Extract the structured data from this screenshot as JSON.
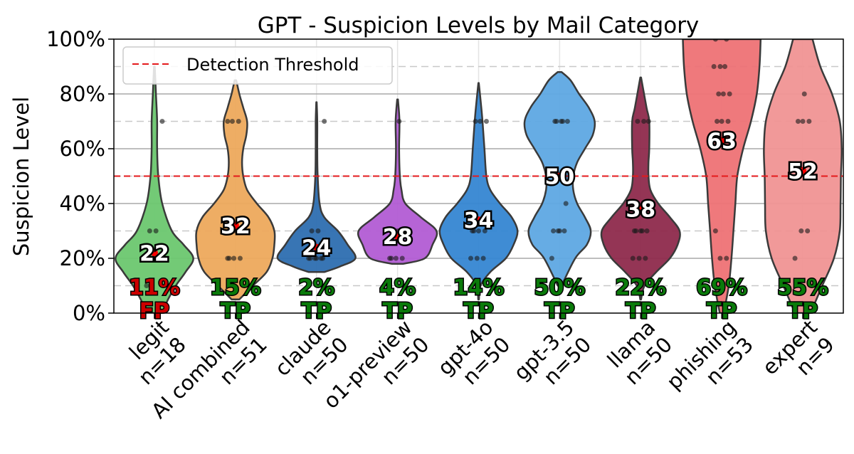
{
  "chart_data": {
    "type": "violin",
    "title": "GPT - Suspicion Levels by Mail Category",
    "ylabel": "Suspicion Level",
    "xlabel": "",
    "ylim": [
      0,
      100
    ],
    "yticks": [
      "0%",
      "20%",
      "40%",
      "60%",
      "80%",
      "100%"
    ],
    "grid": "major solid, minor dashed",
    "threshold": {
      "value": 50,
      "label": "Detection Threshold",
      "color": "#e41a1c"
    },
    "legend_position": "top-left",
    "categories": [
      {
        "name": "legit",
        "n": "n=18",
        "mean": 22,
        "mean_label": "22",
        "rate": "11%",
        "rate_type": "FP",
        "color": "#6cc76f",
        "rate_color": "#cc0000",
        "density": [
          [
            0,
            0.2
          ],
          [
            5,
            0.35
          ],
          [
            10,
            0.55
          ],
          [
            15,
            0.8
          ],
          [
            20,
            1.0
          ],
          [
            25,
            0.75
          ],
          [
            30,
            0.45
          ],
          [
            40,
            0.2
          ],
          [
            50,
            0.1
          ],
          [
            60,
            0.07
          ],
          [
            70,
            0.07
          ],
          [
            80,
            0.04
          ],
          [
            90,
            0.01
          ]
        ],
        "points": [
          10,
          20,
          20,
          20,
          20,
          20,
          30,
          30,
          70
        ]
      },
      {
        "name": "AI combined",
        "n": "n=51",
        "mean": 32,
        "mean_label": "32",
        "rate": "15%",
        "rate_type": "TP",
        "color": "#eda95c",
        "rate_color": "#0a7a0a",
        "density": [
          [
            5,
            0.1
          ],
          [
            10,
            0.45
          ],
          [
            15,
            0.8
          ],
          [
            20,
            0.95
          ],
          [
            25,
            1.0
          ],
          [
            30,
            1.0
          ],
          [
            35,
            0.85
          ],
          [
            40,
            0.55
          ],
          [
            45,
            0.3
          ],
          [
            50,
            0.2
          ],
          [
            55,
            0.17
          ],
          [
            60,
            0.2
          ],
          [
            65,
            0.28
          ],
          [
            70,
            0.3
          ],
          [
            75,
            0.2
          ],
          [
            80,
            0.1
          ],
          [
            85,
            0.02
          ]
        ],
        "points": [
          20,
          20,
          20,
          20,
          30,
          30,
          30,
          30,
          30,
          70,
          70,
          70
        ]
      },
      {
        "name": "claude",
        "n": "n=50",
        "mean": 24,
        "mean_label": "24",
        "rate": "2%",
        "rate_type": "TP",
        "color": "#2d6eb0",
        "rate_color": "#0a7a0a",
        "density": [
          [
            15,
            0.2
          ],
          [
            17,
            0.6
          ],
          [
            20,
            1.0
          ],
          [
            25,
            0.8
          ],
          [
            30,
            0.55
          ],
          [
            35,
            0.2
          ],
          [
            40,
            0.08
          ],
          [
            50,
            0.03
          ],
          [
            60,
            0.02
          ],
          [
            70,
            0.02
          ],
          [
            77,
            0.005
          ]
        ],
        "points": [
          20,
          20,
          20,
          20,
          20,
          20,
          30,
          30,
          70
        ]
      },
      {
        "name": "o1-preview",
        "n": "n=50",
        "mean": 28,
        "mean_label": "28",
        "rate": "4%",
        "rate_type": "TP",
        "color": "#b25cd4",
        "rate_color": "#0a7a0a",
        "density": [
          [
            18,
            0.15
          ],
          [
            20,
            0.7
          ],
          [
            25,
            0.9
          ],
          [
            30,
            1.0
          ],
          [
            35,
            0.6
          ],
          [
            40,
            0.2
          ],
          [
            45,
            0.1
          ],
          [
            50,
            0.06
          ],
          [
            60,
            0.04
          ],
          [
            70,
            0.05
          ],
          [
            78,
            0.01
          ]
        ],
        "points": [
          20,
          20,
          20,
          20,
          30,
          30,
          30,
          70
        ]
      },
      {
        "name": "gpt-4o",
        "n": "n=50",
        "mean": 34,
        "mean_label": "34",
        "rate": "14%",
        "rate_type": "TP",
        "color": "#3586d2",
        "rate_color": "#0a7a0a",
        "density": [
          [
            5,
            0.01
          ],
          [
            10,
            0.05
          ],
          [
            15,
            0.3
          ],
          [
            20,
            0.7
          ],
          [
            25,
            0.9
          ],
          [
            30,
            1.0
          ],
          [
            35,
            0.85
          ],
          [
            40,
            0.55
          ],
          [
            45,
            0.3
          ],
          [
            50,
            0.2
          ],
          [
            60,
            0.15
          ],
          [
            70,
            0.1
          ],
          [
            75,
            0.07
          ],
          [
            84,
            0.005
          ]
        ],
        "points": [
          20,
          20,
          20,
          30,
          30,
          30,
          30,
          70,
          70,
          70
        ]
      },
      {
        "name": "gpt-3.5",
        "n": "n=50",
        "mean": 50,
        "mean_label": "50",
        "rate": "50%",
        "rate_type": "TP",
        "color": "#5ea8e3",
        "rate_color": "#0a7a0a",
        "density": [
          [
            10,
            0.05
          ],
          [
            20,
            0.4
          ],
          [
            25,
            0.7
          ],
          [
            30,
            0.8
          ],
          [
            35,
            0.65
          ],
          [
            40,
            0.45
          ],
          [
            45,
            0.35
          ],
          [
            50,
            0.35
          ],
          [
            55,
            0.45
          ],
          [
            60,
            0.65
          ],
          [
            65,
            0.85
          ],
          [
            70,
            0.9
          ],
          [
            75,
            0.75
          ],
          [
            80,
            0.5
          ],
          [
            85,
            0.28
          ],
          [
            88,
            0.05
          ]
        ],
        "points": [
          20,
          30,
          30,
          30,
          30,
          40,
          70,
          70,
          70,
          70,
          70
        ]
      },
      {
        "name": "llama",
        "n": "n=50",
        "mean": 38,
        "mean_label": "38",
        "rate": "22%",
        "rate_type": "TP",
        "color": "#8e2a4c",
        "rate_color": "#0a7a0a",
        "density": [
          [
            5,
            0.01
          ],
          [
            10,
            0.1
          ],
          [
            15,
            0.4
          ],
          [
            20,
            0.75
          ],
          [
            25,
            0.95
          ],
          [
            30,
            1.0
          ],
          [
            35,
            0.75
          ],
          [
            40,
            0.45
          ],
          [
            45,
            0.25
          ],
          [
            50,
            0.2
          ],
          [
            55,
            0.2
          ],
          [
            60,
            0.22
          ],
          [
            70,
            0.22
          ],
          [
            75,
            0.15
          ],
          [
            86,
            0.01
          ]
        ],
        "points": [
          20,
          20,
          20,
          30,
          30,
          30,
          30,
          30,
          70,
          70,
          70
        ]
      },
      {
        "name": "phishing",
        "n": "n=53",
        "mean": 63,
        "mean_label": "63",
        "rate": "69%",
        "rate_type": "TP",
        "color": "#ee7275",
        "rate_color": "#0a7a0a",
        "density": [
          [
            0,
            0.05
          ],
          [
            10,
            0.18
          ],
          [
            20,
            0.25
          ],
          [
            30,
            0.3
          ],
          [
            40,
            0.35
          ],
          [
            50,
            0.4
          ],
          [
            60,
            0.55
          ],
          [
            70,
            0.75
          ],
          [
            80,
            0.9
          ],
          [
            90,
            0.97
          ],
          [
            100,
            1.0
          ]
        ],
        "points": [
          10,
          20,
          20,
          30,
          70,
          70,
          70,
          80,
          80,
          80,
          90,
          90,
          90,
          100,
          100
        ]
      },
      {
        "name": "expert",
        "n": "n=9",
        "mean": 52,
        "mean_label": "52",
        "rate": "55%",
        "rate_type": "TP",
        "color": "#f09393",
        "rate_color": "#0a7a0a",
        "density": [
          [
            0,
            0.2
          ],
          [
            10,
            0.5
          ],
          [
            20,
            0.8
          ],
          [
            30,
            0.95
          ],
          [
            40,
            0.97
          ],
          [
            50,
            0.98
          ],
          [
            60,
            1.0
          ],
          [
            70,
            0.95
          ],
          [
            80,
            0.75
          ],
          [
            90,
            0.45
          ],
          [
            100,
            0.25
          ]
        ],
        "points": [
          20,
          30,
          30,
          50,
          70,
          70,
          70,
          80
        ]
      }
    ]
  }
}
